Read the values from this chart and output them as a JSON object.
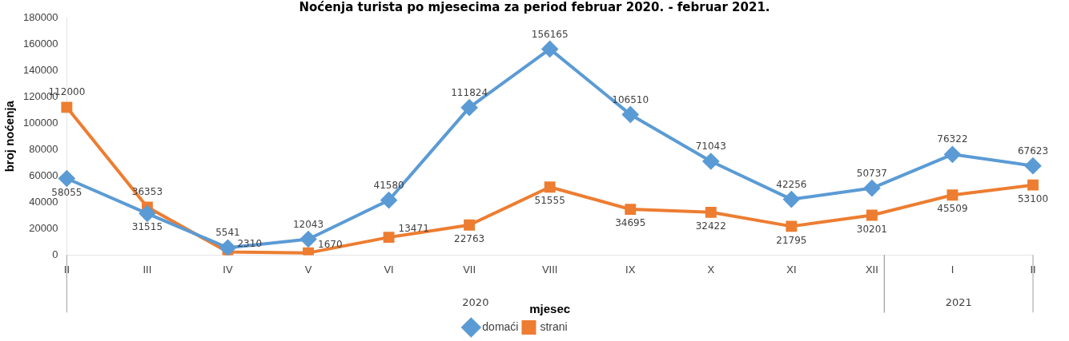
{
  "chart_data": {
    "type": "line",
    "title": "Noćenja turista po mjesecima za period februar 2020. - februar 2021.",
    "xlabel": "mjesec",
    "ylabel": "broj noćenja",
    "categories": [
      "II",
      "III",
      "IV",
      "V",
      "VI",
      "VII",
      "VIII",
      "IX",
      "X",
      "XI",
      "XII",
      "I",
      "II"
    ],
    "series": [
      {
        "name": "domaći",
        "color": "#5b9bd5",
        "marker": "diamond",
        "values": [
          58055,
          31515,
          5541,
          12043,
          41580,
          111824,
          156165,
          106510,
          71043,
          42256,
          50737,
          76322,
          67623
        ]
      },
      {
        "name": "strani",
        "color": "#ed7d31",
        "marker": "square",
        "values": [
          112000,
          36353,
          2310,
          1670,
          13471,
          22763,
          51555,
          34695,
          32422,
          21795,
          30201,
          45509,
          53100
        ]
      }
    ],
    "annotations": [
      "2020",
      "2021"
    ],
    "ylim": [
      0,
      180000
    ],
    "yticks": [
      0,
      20000,
      40000,
      60000,
      80000,
      100000,
      120000,
      140000,
      160000,
      180000
    ],
    "grid": false,
    "legend": "bottom",
    "data_labels": true,
    "line_style": "solid"
  }
}
